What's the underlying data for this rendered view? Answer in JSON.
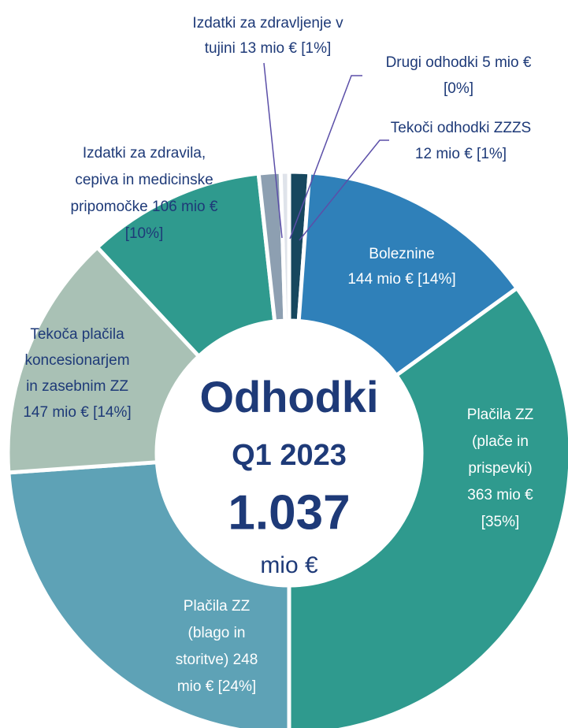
{
  "chart_data": {
    "type": "donut",
    "center_text": [
      "Odhodki",
      "Q1 2023",
      "1.037",
      "mio €"
    ],
    "values": [
      12,
      144,
      363,
      248,
      147,
      106,
      13,
      5
    ],
    "labels": [
      [
        "Tekoči odhodki ZZZS",
        "12 mio € [1%]"
      ],
      [
        "Boleznine",
        "144 mio € [14%]"
      ],
      [
        "Plačila ZZ",
        "(plače in",
        "prispevki)",
        "363 mio €",
        "[35%]"
      ],
      [
        "Plačila ZZ",
        "(blago in",
        "storitve) 248",
        "mio € [24%]"
      ],
      [
        "Tekoča plačila",
        "koncesionarjem",
        "in zasebnim ZZ",
        "147 mio € [14%]"
      ],
      [
        "Izdatki za zdravila,",
        "cepiva in medicinske",
        "pripomočke 106 mio €",
        "[10%]"
      ],
      [
        "Izdatki za zdravljenje v",
        "tujini 13 mio € [1%]"
      ],
      [
        "Drugi odhodki 5 mio €",
        "[0%]"
      ]
    ],
    "colors": [
      "#17475e",
      "#2f80b9",
      "#2f9a8e",
      "#5ea2b6",
      "#a9c1b5",
      "#2f9a8e",
      "#8d9fb1",
      "#dfe3ea"
    ]
  }
}
